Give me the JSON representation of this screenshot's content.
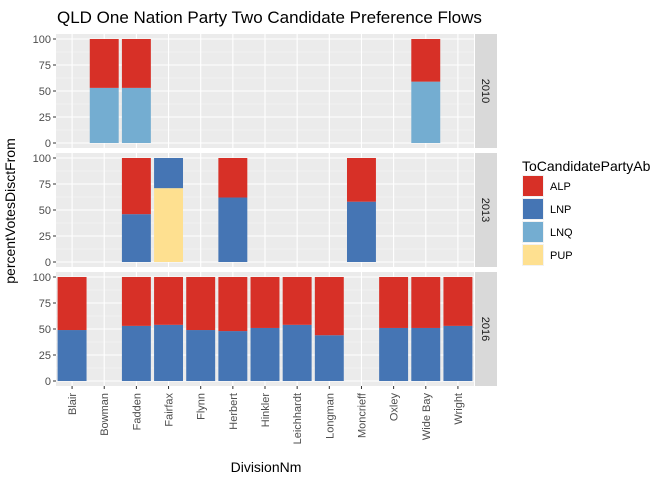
{
  "chart_data": {
    "type": "bar",
    "stacked": true,
    "title": "QLD One Nation Party Two Candidate Preference Flows",
    "xlabel": "DivisionNm",
    "ylabel": "percentVotesDisctFrom",
    "ylim": [
      0,
      100
    ],
    "yticks": [
      "0",
      "25",
      "50",
      "75",
      "100"
    ],
    "categories": [
      "Blair",
      "Bowman",
      "Fadden",
      "Fairfax",
      "Flynn",
      "Herbert",
      "Hinkler",
      "Leichhardt",
      "Longman",
      "Moncrieff",
      "Oxley",
      "Wide Bay",
      "Wright"
    ],
    "legend": {
      "title": "ToCandidatePartyAb",
      "position": "right",
      "entries": [
        {
          "name": "ALP",
          "color": "#d73027"
        },
        {
          "name": "LNP",
          "color": "#4575b4"
        },
        {
          "name": "LNQ",
          "color": "#74add1"
        },
        {
          "name": "PUP",
          "color": "#fee090"
        }
      ]
    },
    "grid": true,
    "facets": [
      {
        "label": "2010",
        "bars": [
          {
            "category": "Bowman",
            "segments": [
              {
                "party": "LNQ",
                "value": 53
              },
              {
                "party": "ALP",
                "value": 47
              }
            ]
          },
          {
            "category": "Fadden",
            "segments": [
              {
                "party": "LNQ",
                "value": 53
              },
              {
                "party": "ALP",
                "value": 47
              }
            ]
          },
          {
            "category": "Wide Bay",
            "segments": [
              {
                "party": "LNQ",
                "value": 59
              },
              {
                "party": "ALP",
                "value": 41
              }
            ]
          }
        ]
      },
      {
        "label": "2013",
        "bars": [
          {
            "category": "Fadden",
            "segments": [
              {
                "party": "LNP",
                "value": 46
              },
              {
                "party": "ALP",
                "value": 54
              }
            ]
          },
          {
            "category": "Fairfax",
            "segments": [
              {
                "party": "PUP",
                "value": 71
              },
              {
                "party": "LNP",
                "value": 29
              }
            ]
          },
          {
            "category": "Herbert",
            "segments": [
              {
                "party": "LNP",
                "value": 62
              },
              {
                "party": "ALP",
                "value": 38
              }
            ]
          },
          {
            "category": "Moncrieff",
            "segments": [
              {
                "party": "LNP",
                "value": 58
              },
              {
                "party": "ALP",
                "value": 42
              }
            ]
          }
        ]
      },
      {
        "label": "2016",
        "bars": [
          {
            "category": "Blair",
            "segments": [
              {
                "party": "LNP",
                "value": 49
              },
              {
                "party": "ALP",
                "value": 51
              }
            ]
          },
          {
            "category": "Fadden",
            "segments": [
              {
                "party": "LNP",
                "value": 53
              },
              {
                "party": "ALP",
                "value": 47
              }
            ]
          },
          {
            "category": "Fairfax",
            "segments": [
              {
                "party": "LNP",
                "value": 54
              },
              {
                "party": "ALP",
                "value": 46
              }
            ]
          },
          {
            "category": "Flynn",
            "segments": [
              {
                "party": "LNP",
                "value": 49
              },
              {
                "party": "ALP",
                "value": 51
              }
            ]
          },
          {
            "category": "Herbert",
            "segments": [
              {
                "party": "LNP",
                "value": 48
              },
              {
                "party": "ALP",
                "value": 52
              }
            ]
          },
          {
            "category": "Hinkler",
            "segments": [
              {
                "party": "LNP",
                "value": 51
              },
              {
                "party": "ALP",
                "value": 49
              }
            ]
          },
          {
            "category": "Leichhardt",
            "segments": [
              {
                "party": "LNP",
                "value": 54
              },
              {
                "party": "ALP",
                "value": 46
              }
            ]
          },
          {
            "category": "Longman",
            "segments": [
              {
                "party": "LNP",
                "value": 44
              },
              {
                "party": "ALP",
                "value": 56
              }
            ]
          },
          {
            "category": "Oxley",
            "segments": [
              {
                "party": "LNP",
                "value": 51
              },
              {
                "party": "ALP",
                "value": 49
              }
            ]
          },
          {
            "category": "Wide Bay",
            "segments": [
              {
                "party": "LNP",
                "value": 51
              },
              {
                "party": "ALP",
                "value": 49
              }
            ]
          },
          {
            "category": "Wright",
            "segments": [
              {
                "party": "LNP",
                "value": 53
              },
              {
                "party": "ALP",
                "value": 47
              }
            ]
          }
        ]
      }
    ]
  }
}
